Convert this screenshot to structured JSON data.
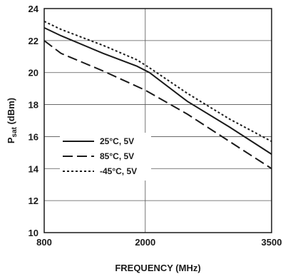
{
  "chart_data": {
    "type": "line",
    "xlabel": "FREQUENCY (MHz)",
    "ylabel_main": "P",
    "ylabel_sub": "sat",
    "ylabel_rest": " (dBm)",
    "xlim": [
      800,
      3500
    ],
    "ylim": [
      10,
      24
    ],
    "x_ticks": [
      "800",
      "2000",
      "3500"
    ],
    "y_ticks": [
      "10",
      "12",
      "14",
      "16",
      "18",
      "20",
      "22",
      "24"
    ],
    "x_tick_values": [
      800,
      2000,
      3500
    ],
    "y_tick_values": [
      10,
      12,
      14,
      16,
      18,
      20,
      22,
      24
    ],
    "x_grid": [
      800,
      2000,
      3500
    ],
    "grid": true,
    "legend_position": "lower-left",
    "series": [
      {
        "name": "25°C, 5V",
        "style": "solid",
        "x": [
          800,
          1000,
          1500,
          1900,
          2050,
          2500,
          3000,
          3500
        ],
        "y": [
          22.8,
          22.3,
          21.2,
          20.4,
          20.0,
          18.2,
          16.6,
          14.9
        ]
      },
      {
        "name": "85°C, 5V",
        "style": "dashed",
        "x": [
          800,
          1000,
          1500,
          2000,
          2500,
          3000,
          3500
        ],
        "y": [
          22.0,
          21.2,
          20.1,
          18.9,
          17.4,
          15.7,
          14.0
        ]
      },
      {
        "name": "-45°C, 5V",
        "style": "dotted",
        "x": [
          800,
          1000,
          1500,
          1900,
          2050,
          2500,
          3000,
          3500
        ],
        "y": [
          23.2,
          22.7,
          21.7,
          20.8,
          20.3,
          18.7,
          17.1,
          15.7
        ]
      }
    ]
  }
}
